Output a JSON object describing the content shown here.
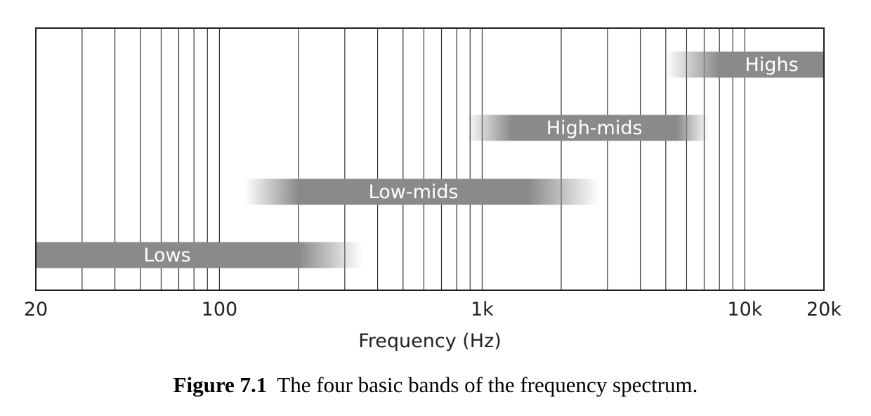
{
  "chart_data": {
    "type": "bar",
    "orientation": "horizontal-range",
    "xscale": "log",
    "xlim": [
      20,
      20000
    ],
    "xlabel": "Frequency (Hz)",
    "x_ticks": [
      {
        "value": 20,
        "label": "20"
      },
      {
        "value": 100,
        "label": "100"
      },
      {
        "value": 1000,
        "label": "1k"
      },
      {
        "value": 10000,
        "label": "10k"
      },
      {
        "value": 20000,
        "label": "20k"
      }
    ],
    "gridlines": [
      30,
      40,
      50,
      60,
      70,
      80,
      90,
      100,
      200,
      300,
      400,
      500,
      600,
      700,
      800,
      900,
      1000,
      2000,
      3000,
      4000,
      5000,
      6000,
      7000,
      8000,
      9000,
      10000
    ],
    "bands": [
      {
        "label": "Lows",
        "fade_start": 20,
        "full_start": 20,
        "full_end": 200,
        "fade_end": 350
      },
      {
        "label": "Low-mids",
        "fade_start": 125,
        "full_start": 200,
        "full_end": 1500,
        "fade_end": 2800
      },
      {
        "label": "High-mids",
        "fade_start": 870,
        "full_start": 1300,
        "full_end": 5500,
        "fade_end": 7300
      },
      {
        "label": "Highs",
        "fade_start": 5000,
        "full_start": 8000,
        "full_end": 20000,
        "fade_end": 20000
      }
    ],
    "bar_color": "#8a8a8a",
    "grid_color": "#333333"
  },
  "caption": {
    "number": "Figure 7.1",
    "text": "The four basic bands of the frequency spectrum."
  }
}
